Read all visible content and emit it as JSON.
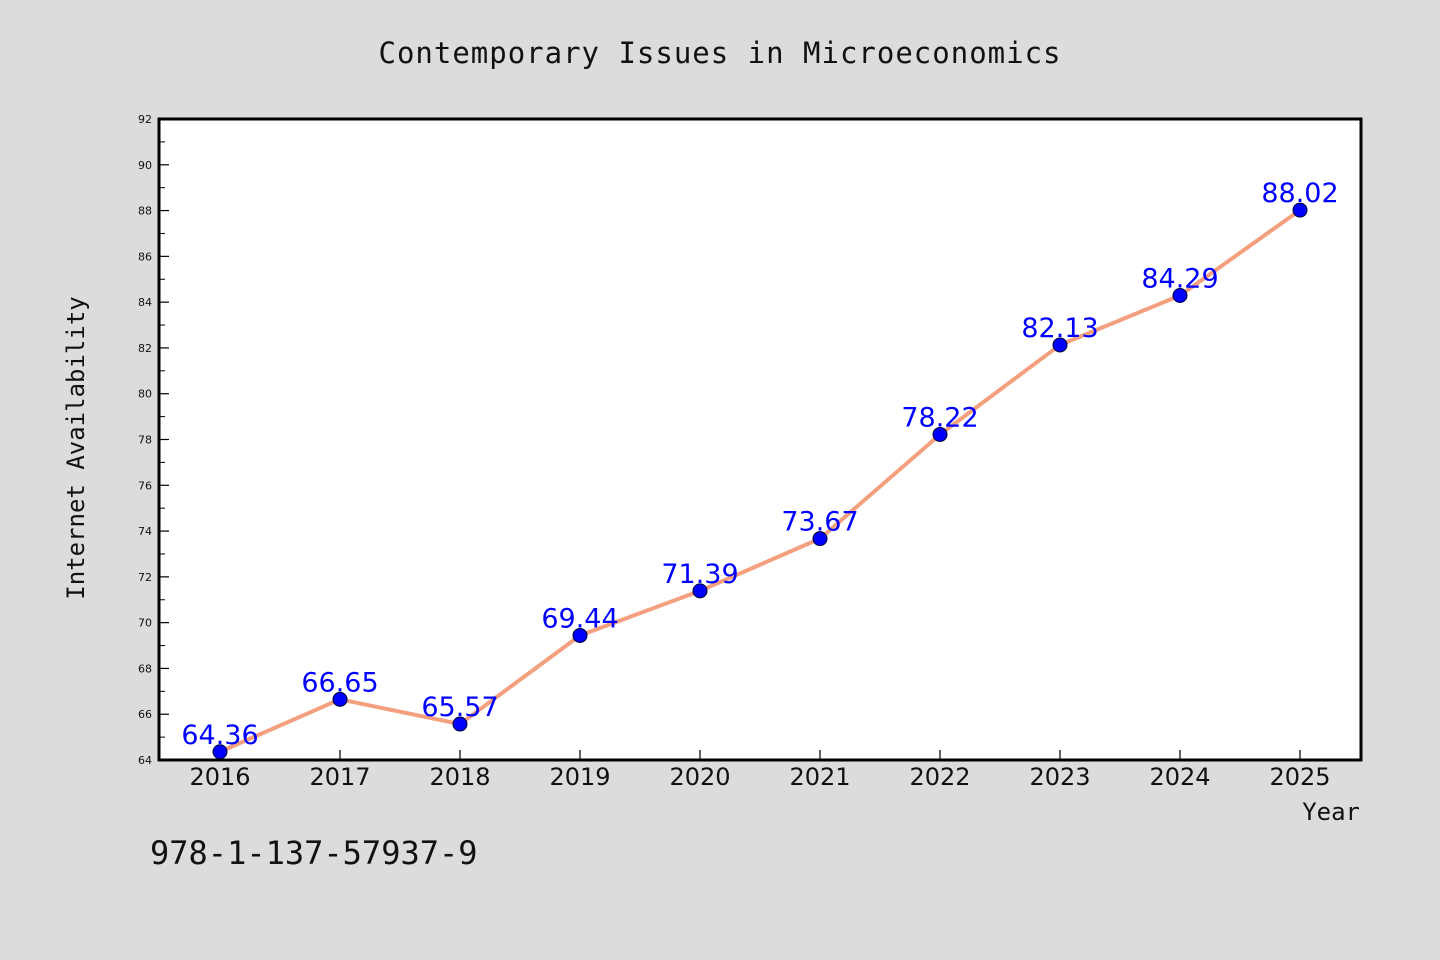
{
  "chart_data": {
    "type": "line",
    "title": "Contemporary Issues in Microeconomics",
    "xlabel": "Year",
    "ylabel": "Internet Availability",
    "categories": [
      "2016",
      "2017",
      "2018",
      "2019",
      "2020",
      "2021",
      "2022",
      "2023",
      "2024",
      "2025"
    ],
    "series": [
      {
        "values": [
          64.36,
          66.65,
          65.57,
          69.44,
          71.39,
          73.67,
          78.22,
          82.13,
          84.29,
          88.02
        ],
        "data_labels": [
          "64.36",
          "66.65",
          "65.57",
          "69.44",
          "71.39",
          "73.67",
          "78.22",
          "82.13",
          "84.29",
          "88.02"
        ]
      }
    ],
    "ylim": [
      64,
      92
    ],
    "yticks": [
      "64",
      "66",
      "68",
      "70",
      "72",
      "74",
      "76",
      "78",
      "80",
      "82",
      "84",
      "86",
      "88",
      "90",
      "92"
    ],
    "grid": false,
    "legend": "none",
    "colors": {
      "line": "#f4a07e",
      "marker": "#0000ff",
      "data_label": "#0000ff",
      "background": "#dcdcdc",
      "plot_area": "#ffffff"
    }
  },
  "footnote": "978-1-137-57937-9"
}
